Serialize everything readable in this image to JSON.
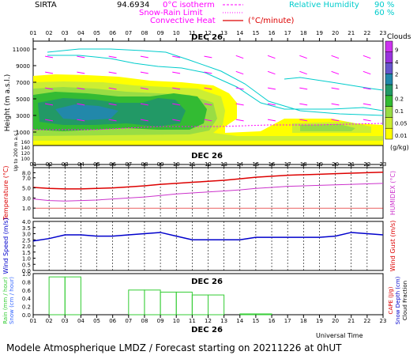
{
  "header": {
    "station": "SIRTA",
    "station_code": "94.6934",
    "legend_isotherm": "0°C isotherm",
    "legend_snow_rain": "Snow-Rain Limit",
    "legend_convective": "Convective Heat",
    "legend_convective_unit": "(°C/minute)",
    "legend_rh": "Relative Humidity",
    "rh_90": "90 %",
    "rh_60": "60 %"
  },
  "hours": [
    "01",
    "02",
    "03",
    "04",
    "05",
    "06",
    "07",
    "08",
    "09",
    "10",
    "11",
    "12",
    "13",
    "14",
    "15",
    "16",
    "17",
    "18",
    "19",
    "20",
    "21",
    "22",
    "23"
  ],
  "date_label": "DEC 26",
  "footer": "Modele Atmospherique LMDZ / Forecast starting on 20211226 at 0hUT",
  "xaxis_label": "Universal Time",
  "colors": {
    "temperature": "#dd0000",
    "humidex": "#cc33cc",
    "wind": "#0000cc",
    "rain": "#33cc33",
    "rh_line": "#00cccc",
    "wind_arrow": "#ff00ff",
    "cloud_scale": [
      "#ffff00",
      "#ccee33",
      "#99dd44",
      "#33bb33",
      "#229966",
      "#2288aa",
      "#6655cc",
      "#9933dd",
      "#cc33ee"
    ]
  },
  "chart_data": [
    {
      "type": "heatmap",
      "name_panel": "clouds",
      "ylabel": "Height (m a.s.l.)",
      "ylabel_low": "Up to 200 m a.s.l.",
      "yticks": [
        "11000",
        "9000",
        "7000",
        "5000",
        "3000",
        "1000"
      ],
      "yticks_low": [
        "160",
        "140",
        "120",
        "100"
      ],
      "colorbar_title": "Clouds",
      "colorbar_unit": "(g/kg)",
      "colorbar_labels": [
        "9",
        "4",
        "2",
        "1",
        "0.2",
        "0.1",
        "0.05",
        "0.01"
      ]
    },
    {
      "type": "line",
      "name_panel": "temperature",
      "ylabel": "Temperature (°C)",
      "ylabel_right": "HUMIDEX (°C)",
      "ylim": [
        -1.0,
        9.0
      ],
      "yticks": [
        "8.0",
        "7.0",
        "5.0",
        "3.0",
        "1.0"
      ],
      "x": [
        1,
        2,
        3,
        4,
        5,
        6,
        7,
        8,
        9,
        10,
        11,
        12,
        13,
        14,
        15,
        16,
        17,
        18,
        19,
        20,
        21,
        22,
        23
      ],
      "series": [
        {
          "name": "Temperature",
          "values": [
            5.1,
            4.9,
            4.8,
            4.8,
            4.9,
            5.0,
            5.2,
            5.4,
            5.7,
            5.9,
            6.1,
            6.3,
            6.5,
            6.8,
            7.1,
            7.3,
            7.5,
            7.6,
            7.7,
            7.8,
            7.9,
            8.0,
            8.1
          ]
        },
        {
          "name": "Humidex",
          "values": [
            2.8,
            2.5,
            2.4,
            2.5,
            2.6,
            2.8,
            3.0,
            3.2,
            3.5,
            3.8,
            4.0,
            4.2,
            4.4,
            4.6,
            4.9,
            5.1,
            5.3,
            5.4,
            5.5,
            5.6,
            5.7,
            5.8,
            5.9
          ]
        },
        {
          "name": "Zero",
          "values": [
            1.0,
            1.0,
            1.0,
            1.0,
            1.0,
            1.0,
            1.0,
            1.0,
            1.0,
            1.0,
            1.0,
            1.0,
            1.0,
            1.0,
            1.0,
            1.0,
            1.0,
            1.0,
            1.0,
            1.0,
            1.0,
            1.0,
            1.0
          ]
        }
      ]
    },
    {
      "type": "line",
      "name_panel": "wind",
      "ylabel": "Wind Speed (m/s)",
      "ylabel_right": "Wind Gust (m/s)",
      "ylim": [
        0.0,
        4.0
      ],
      "yticks": [
        "4.0",
        "3.5",
        "3.0",
        "2.5",
        "2.0",
        "1.5",
        "1.0",
        "0.5",
        "0.0"
      ],
      "x": [
        1,
        2,
        3,
        4,
        5,
        6,
        7,
        8,
        9,
        10,
        11,
        12,
        13,
        14,
        15,
        16,
        17,
        18,
        19,
        20,
        21,
        22,
        23
      ],
      "series": [
        {
          "name": "Wind Speed",
          "values": [
            2.4,
            2.6,
            2.9,
            2.9,
            2.8,
            2.8,
            2.9,
            3.0,
            3.1,
            2.8,
            2.5,
            2.5,
            2.5,
            2.5,
            2.7,
            2.7,
            2.7,
            2.7,
            2.7,
            2.8,
            3.1,
            3.0,
            2.9
          ]
        }
      ]
    },
    {
      "type": "bar",
      "name_panel": "precip",
      "ylabel": "Rain (mm / hour)",
      "ylabel2": "Snow (cm / hour)",
      "ylabel_right": "CAPE (J/g)",
      "ylabel_right2": "Snow Depth (cm)",
      "ylabel_right3": "Cloud Fraction",
      "ylim": [
        0.0,
        1.0
      ],
      "yticks": [
        "1.0",
        "0.8",
        "0.6",
        "0.4",
        "0.2",
        "0.0"
      ],
      "categories": [
        "01",
        "02",
        "03",
        "04",
        "05",
        "06",
        "07",
        "08",
        "09",
        "10",
        "11",
        "12",
        "13",
        "14",
        "15",
        "16",
        "17",
        "18",
        "19",
        "20",
        "21",
        "22",
        "23"
      ],
      "values": [
        0.0,
        0.92,
        0.92,
        0.0,
        0.0,
        0.0,
        0.6,
        0.6,
        0.55,
        0.55,
        0.48,
        0.48,
        0.0,
        0.02,
        0.02,
        0.0,
        0.0,
        0.0,
        0.0,
        0.0,
        0.0,
        0.0,
        0.0
      ]
    }
  ]
}
